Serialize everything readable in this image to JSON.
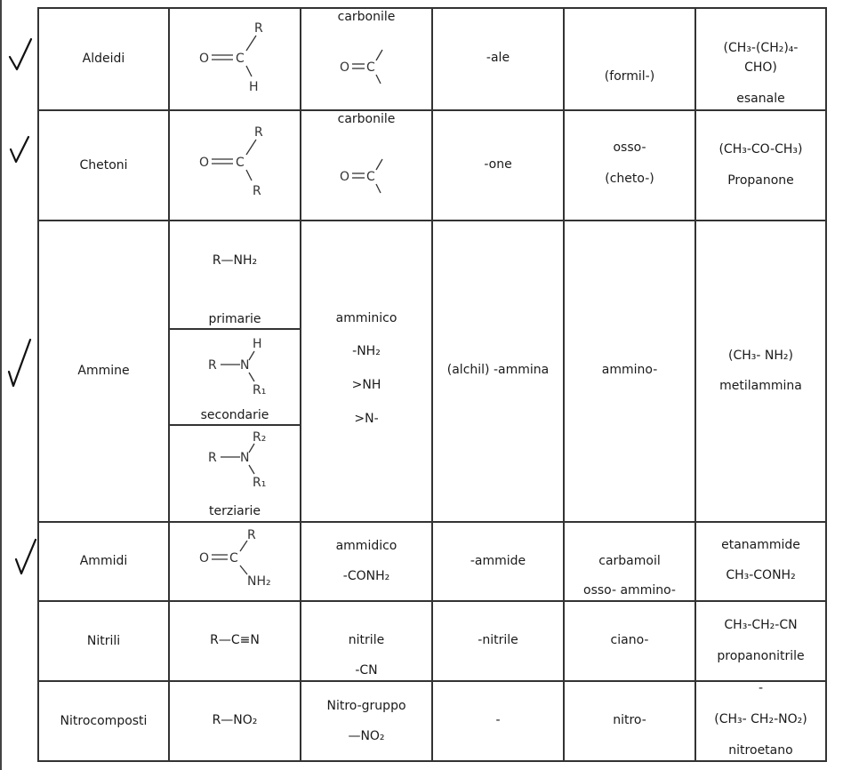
{
  "rows": {
    "aldeidi": {
      "name": "Aldeidi",
      "group_name": "carbonile",
      "suffix": "-ale",
      "prefix": "(formil-)",
      "example_formula": "(CH₃-(CH₂)₄-",
      "example_formula_2": "CHO)",
      "example_name": "esanale"
    },
    "chetoni": {
      "name": "Chetoni",
      "group_name": "carbonile",
      "suffix": "-one",
      "prefix_1": "osso-",
      "prefix_2": "(cheto-)",
      "example_formula": "(CH₃-CO-CH₃)",
      "example_name": "Propanone"
    },
    "ammine": {
      "name": "Ammine",
      "formula_primary": "R—NH₂",
      "label_primary": "primarie",
      "label_secondary": "secondarie",
      "label_tertiary": "terziarie",
      "group_name": "amminico",
      "group_1": "-NH₂",
      "group_2": ">NH",
      "group_3": ">N-",
      "suffix": "(alchil) -ammina",
      "prefix": "ammino-",
      "example_formula": "(CH₃- NH₂)",
      "example_name": "metilammina"
    },
    "ammidi": {
      "name": "Ammidi",
      "group_name": "ammidico",
      "group_formula": "-CONH₂",
      "suffix": "-ammide",
      "prefix_1": "carbamoil",
      "prefix_2": "osso- ammino-",
      "example_name": "etanammide",
      "example_formula": "CH₃-CONH₂"
    },
    "nitrili": {
      "name": "Nitrili",
      "formula": "R—C≡N",
      "group_name": "nitrile",
      "group_formula": "-CN",
      "suffix": "-nitrile",
      "prefix": "ciano-",
      "example_formula": "CH₃-CH₂-CN",
      "example_name": "propanonitrile"
    },
    "nitrocomposti": {
      "name": "Nitrocomposti",
      "formula": "R—NO₂",
      "group_name": "Nitro-gruppo",
      "group_formula": "—NO₂",
      "suffix": "-",
      "prefix": "nitro-",
      "example_dash": "-",
      "example_formula": "(CH₃- CH₂-NO₂)",
      "example_name": "nitroetano"
    }
  },
  "atoms": {
    "O": "O",
    "C": "C",
    "R": "R",
    "H": "H",
    "N": "N",
    "R1": "R₁",
    "R2": "R₂",
    "NH2": "NH₂"
  },
  "annotations": {
    "checkmark_count": 4
  }
}
